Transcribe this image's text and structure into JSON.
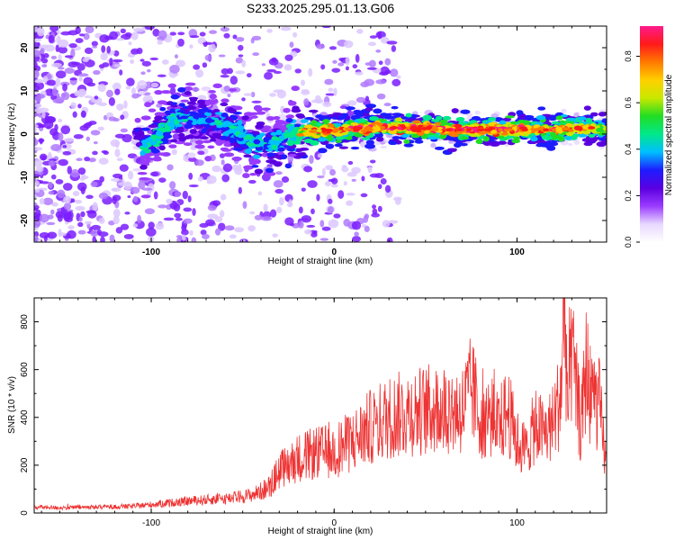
{
  "figure": {
    "title": "S233.2025.295.01.13.G06"
  },
  "chart_data": [
    {
      "id": "spectrogram",
      "type": "heatmap",
      "title": "S233.2025.295.01.13.G06",
      "xlabel": "Height of straight line (km)",
      "ylabel": "Frequency (Hz)",
      "xlim": [
        -164,
        149
      ],
      "ylim": [
        -25,
        25
      ],
      "xticks": [
        -100,
        0,
        100
      ],
      "yticks": [
        -20,
        -10,
        0,
        10,
        20
      ],
      "colorbar": {
        "label": "Normalized spectral amplitude",
        "range": [
          0,
          0.93
        ],
        "ticks": [
          "0.0",
          "0.2",
          "0.4",
          "0.6",
          "0.8"
        ],
        "colormap": [
          "#ffffff",
          "#e8d8ff",
          "#9a3cff",
          "#5a00e0",
          "#1d1dff",
          "#00bfff",
          "#00e88a",
          "#22dd22",
          "#c8e800",
          "#ffd000",
          "#ff7a00",
          "#ff1a1a",
          "#ff1a8c"
        ]
      },
      "signal_track": {
        "description_points": [
          {
            "x": -105,
            "y": -3,
            "amp": 0.45
          },
          {
            "x": -95,
            "y": 0,
            "amp": 0.5
          },
          {
            "x": -85,
            "y": 4,
            "amp": 0.45
          },
          {
            "x": -75,
            "y": 3,
            "amp": 0.4
          },
          {
            "x": -65,
            "y": 3,
            "amp": 0.4
          },
          {
            "x": -55,
            "y": 1,
            "amp": 0.45
          },
          {
            "x": -45,
            "y": -2,
            "amp": 0.45
          },
          {
            "x": -35,
            "y": -3,
            "amp": 0.45
          },
          {
            "x": -25,
            "y": 0,
            "amp": 0.5
          },
          {
            "x": -15,
            "y": 0.5,
            "amp": 0.8
          },
          {
            "x": 0,
            "y": 1,
            "amp": 0.85
          },
          {
            "x": 20,
            "y": 1.5,
            "amp": 0.9
          },
          {
            "x": 40,
            "y": 1.5,
            "amp": 0.9
          },
          {
            "x": 60,
            "y": 1,
            "amp": 0.88
          },
          {
            "x": 80,
            "y": 1,
            "amp": 0.9
          },
          {
            "x": 100,
            "y": 1,
            "amp": 0.88
          },
          {
            "x": 120,
            "y": 1,
            "amp": 0.85
          },
          {
            "x": 140,
            "y": 1.5,
            "amp": 0.75
          },
          {
            "x": 149,
            "y": 1,
            "amp": 0.6
          }
        ]
      }
    },
    {
      "id": "snr",
      "type": "line",
      "xlabel": "Height of straight line (km)",
      "ylabel": "SNR (10 * v/v)",
      "xlim": [
        -164,
        149
      ],
      "ylim": [
        0,
        900
      ],
      "xticks": [
        -100,
        0,
        100
      ],
      "yticks": [
        0,
        200,
        400,
        600,
        800
      ],
      "color": "#ee3333",
      "series": [
        {
          "name": "SNR",
          "x": [
            -164,
            -150,
            -130,
            -110,
            -100,
            -80,
            -60,
            -45,
            -35,
            -30,
            -25,
            -20,
            -10,
            0,
            10,
            20,
            30,
            40,
            50,
            60,
            70,
            75,
            80,
            85,
            90,
            95,
            100,
            105,
            110,
            115,
            120,
            124,
            126,
            128,
            130,
            135,
            138,
            140,
            145,
            149
          ],
          "values": [
            25,
            22,
            25,
            28,
            35,
            50,
            60,
            75,
            110,
            180,
            200,
            230,
            250,
            260,
            300,
            360,
            400,
            420,
            430,
            440,
            430,
            520,
            400,
            410,
            360,
            430,
            300,
            260,
            370,
            330,
            380,
            500,
            900,
            400,
            660,
            350,
            620,
            500,
            450,
            180
          ]
        }
      ]
    }
  ]
}
